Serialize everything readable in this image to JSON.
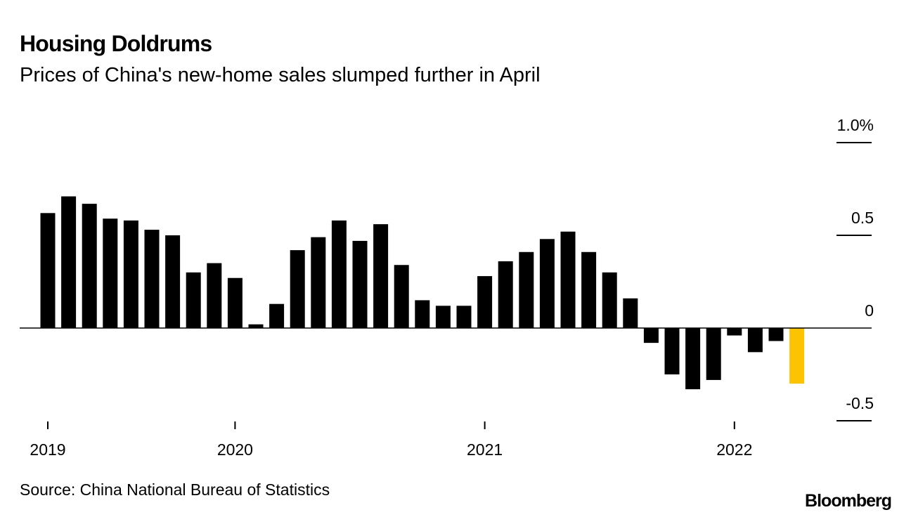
{
  "chart_data": {
    "type": "bar",
    "title": "Housing Doldrums",
    "subtitle": "Prices of China's new-home sales slumped further in April",
    "source": "Source: China National Bureau of Statistics",
    "logo": "Bloomberg",
    "categories": [
      "2019",
      null,
      null,
      null,
      null,
      null,
      null,
      null,
      null,
      "2020",
      null,
      null,
      null,
      null,
      null,
      null,
      null,
      null,
      null,
      null,
      null,
      "2021",
      null,
      null,
      null,
      null,
      null,
      null,
      null,
      null,
      null,
      null,
      null,
      "2022",
      null,
      null,
      null
    ],
    "values": [
      0.62,
      0.71,
      0.67,
      0.59,
      0.58,
      0.53,
      0.5,
      0.3,
      0.35,
      0.27,
      0.02,
      0.13,
      0.42,
      0.49,
      0.58,
      0.47,
      0.56,
      0.34,
      0.15,
      0.12,
      0.12,
      0.28,
      0.36,
      0.41,
      0.48,
      0.52,
      0.41,
      0.3,
      0.16,
      -0.08,
      -0.25,
      -0.33,
      -0.28,
      -0.04,
      -0.13,
      -0.07,
      -0.3
    ],
    "colors": [
      "#000000",
      "#000000",
      "#000000",
      "#000000",
      "#000000",
      "#000000",
      "#000000",
      "#000000",
      "#000000",
      "#000000",
      "#000000",
      "#000000",
      "#000000",
      "#000000",
      "#000000",
      "#000000",
      "#000000",
      "#000000",
      "#000000",
      "#000000",
      "#000000",
      "#000000",
      "#000000",
      "#000000",
      "#000000",
      "#000000",
      "#000000",
      "#000000",
      "#000000",
      "#000000",
      "#000000",
      "#000000",
      "#000000",
      "#000000",
      "#000000",
      "#000000",
      "#fcc300"
    ],
    "ylim": [
      -0.5,
      1.0
    ],
    "yticks": [
      {
        "value": 1.0,
        "label": "1.0%"
      },
      0.5,
      0,
      -0.5
    ]
  }
}
